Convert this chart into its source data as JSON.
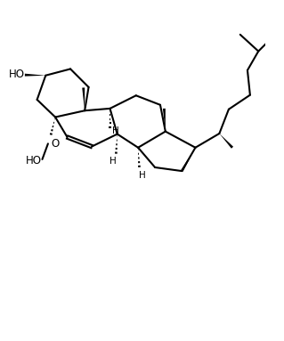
{
  "bg_color": "#ffffff",
  "line_color": "#000000",
  "line_width": 1.5,
  "figsize": [
    3.19,
    3.83
  ],
  "dpi": 100,
  "xlim": [
    0,
    9.5
  ],
  "ylim": [
    -1.5,
    11.5
  ]
}
